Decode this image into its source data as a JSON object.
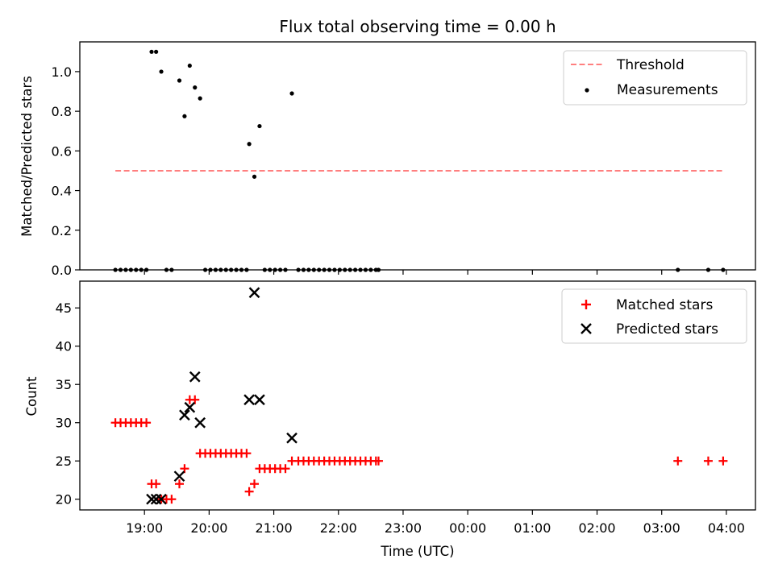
{
  "chart_data": [
    {
      "type": "scatter",
      "title": "Flux total observing time = 0.00 h",
      "xlabel": "",
      "ylabel": "Matched/Predicted stars",
      "ylim": [
        0,
        1.15
      ],
      "xlim_hours": [
        18.0,
        28.45
      ],
      "yticks": [
        0.0,
        0.2,
        0.4,
        0.6,
        0.8,
        1.0
      ],
      "ytick_labels": [
        "0.0",
        "0.2",
        "0.4",
        "0.6",
        "0.8",
        "1.0"
      ],
      "legend": [
        "Threshold",
        "Measurements"
      ],
      "legend_position": "top-right",
      "threshold": {
        "name": "Threshold",
        "value": 0.5,
        "x_start": 18.55,
        "x_end": 27.95,
        "color": "#ff7f7f"
      },
      "series": [
        {
          "name": "Measurements",
          "color": "#000000",
          "x": [
            18.55,
            18.63,
            18.71,
            18.79,
            18.87,
            18.95,
            19.03,
            19.11,
            19.18,
            19.26,
            19.34,
            19.42,
            19.54,
            19.62,
            19.7,
            19.78,
            19.86,
            19.94,
            20.02,
            20.1,
            20.18,
            20.26,
            20.34,
            20.42,
            20.5,
            20.58,
            20.62,
            20.7,
            20.78,
            20.86,
            20.94,
            21.02,
            21.1,
            21.18,
            21.28,
            21.38,
            21.46,
            21.54,
            21.62,
            21.7,
            21.78,
            21.86,
            21.94,
            22.02,
            22.1,
            22.18,
            22.26,
            22.34,
            22.42,
            22.5,
            22.58,
            22.62,
            27.25,
            27.72,
            27.95
          ],
          "y": [
            0,
            0,
            0,
            0,
            0,
            0,
            0,
            1.1,
            1.1,
            1.0,
            0,
            0,
            0.955,
            0.775,
            1.03,
            0.92,
            0.865,
            0,
            0,
            0,
            0,
            0,
            0,
            0,
            0,
            0,
            0.635,
            0.47,
            0.725,
            0,
            0,
            0,
            0,
            0,
            0.89,
            0,
            0,
            0,
            0,
            0,
            0,
            0,
            0,
            0,
            0,
            0,
            0,
            0,
            0,
            0,
            0,
            0,
            0,
            0,
            0
          ]
        }
      ]
    },
    {
      "type": "scatter",
      "title": "",
      "xlabel": "Time (UTC)",
      "ylabel": "Count",
      "ylim": [
        18.6,
        48.5
      ],
      "xlim_hours": [
        18.0,
        28.45
      ],
      "yticks": [
        20,
        25,
        30,
        35,
        40,
        45
      ],
      "ytick_labels": [
        "20",
        "25",
        "30",
        "35",
        "40",
        "45"
      ],
      "xticks_hours": [
        19,
        20,
        21,
        22,
        23,
        24,
        25,
        26,
        27,
        28
      ],
      "xtick_labels": [
        "19:00",
        "20:00",
        "21:00",
        "22:00",
        "23:00",
        "00:00",
        "01:00",
        "02:00",
        "03:00",
        "04:00"
      ],
      "legend": [
        "Matched stars",
        "Predicted stars"
      ],
      "legend_position": "top-right",
      "series": [
        {
          "name": "Matched stars",
          "marker": "plus",
          "color": "#ff0000",
          "x": [
            18.55,
            18.63,
            18.71,
            18.79,
            18.87,
            18.95,
            19.03,
            19.11,
            19.18,
            19.26,
            19.34,
            19.42,
            19.54,
            19.62,
            19.7,
            19.78,
            19.86,
            19.94,
            20.02,
            20.1,
            20.18,
            20.26,
            20.34,
            20.42,
            20.5,
            20.58,
            20.62,
            20.7,
            20.78,
            20.86,
            20.94,
            21.02,
            21.1,
            21.18,
            21.28,
            21.38,
            21.46,
            21.54,
            21.62,
            21.7,
            21.78,
            21.86,
            21.94,
            22.02,
            22.1,
            22.18,
            22.26,
            22.34,
            22.42,
            22.5,
            22.58,
            22.62,
            27.25,
            27.72,
            27.95
          ],
          "y": [
            30,
            30,
            30,
            30,
            30,
            30,
            30,
            22,
            22,
            20,
            20,
            20,
            22,
            24,
            33,
            33,
            26,
            26,
            26,
            26,
            26,
            26,
            26,
            26,
            26,
            26,
            21,
            22,
            24,
            24,
            24,
            24,
            24,
            24,
            25,
            25,
            25,
            25,
            25,
            25,
            25,
            25,
            25,
            25,
            25,
            25,
            25,
            25,
            25,
            25,
            25,
            25,
            25,
            25,
            25
          ]
        },
        {
          "name": "Predicted stars",
          "marker": "x",
          "color": "#000000",
          "x": [
            19.11,
            19.18,
            19.26,
            19.54,
            19.62,
            19.7,
            19.78,
            19.86,
            20.62,
            20.7,
            20.78,
            21.28
          ],
          "y": [
            20,
            20,
            20,
            23,
            31,
            32,
            36,
            30,
            33,
            47,
            33,
            28
          ]
        }
      ]
    }
  ]
}
